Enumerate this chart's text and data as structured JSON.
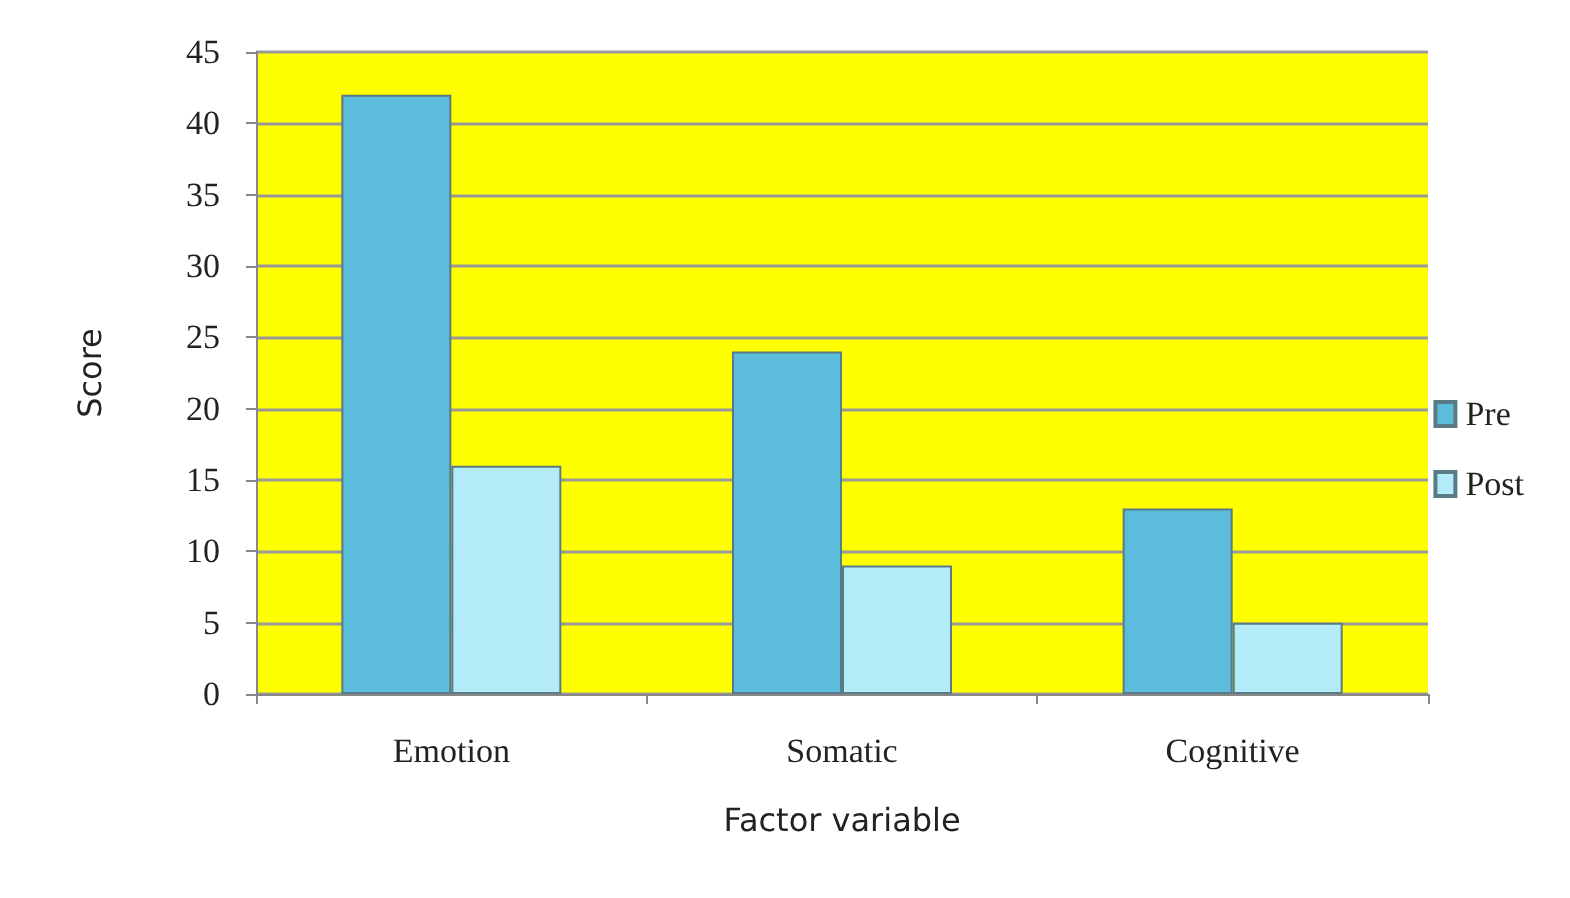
{
  "chart_data": {
    "type": "bar",
    "xlabel": "Factor variable",
    "ylabel": "Score",
    "categories": [
      "Emotion",
      "Somatic",
      "Cognitive"
    ],
    "series": [
      {
        "name": "Pre",
        "color": "#5bbcdc",
        "values": [
          42,
          24,
          13
        ]
      },
      {
        "name": "Post",
        "color": "#b3ecf8",
        "values": [
          16,
          9,
          5
        ]
      }
    ],
    "ylim": [
      0,
      45
    ],
    "yticks": [
      0,
      5,
      10,
      15,
      20,
      25,
      30,
      35,
      40,
      45
    ],
    "grid": "y",
    "legend": "right"
  }
}
